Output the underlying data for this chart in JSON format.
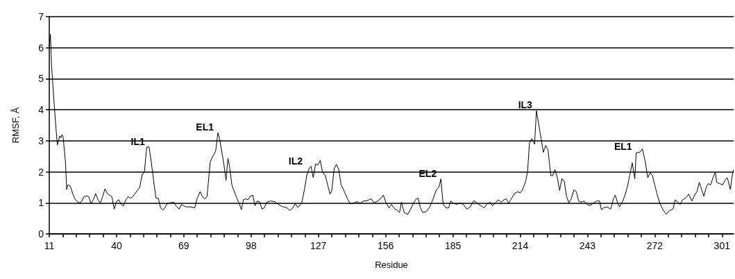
{
  "chart_data": {
    "type": "line",
    "xlabel": "Residue",
    "ylabel": "RMSF, Å",
    "x": [
      11,
      11.5,
      12,
      13,
      14,
      14.5,
      15.5,
      16,
      16.5,
      17,
      18,
      18.5,
      19,
      20,
      21,
      22,
      23,
      24,
      25,
      26,
      27,
      28,
      29,
      30,
      31,
      32,
      33,
      34,
      35,
      36,
      37,
      38,
      39,
      40,
      41,
      42,
      43,
      44,
      45,
      46,
      47,
      48,
      49,
      50,
      51,
      52,
      53,
      54,
      55,
      56,
      57,
      58,
      59,
      60,
      61,
      62,
      63,
      64.7,
      65.7,
      67,
      68,
      69,
      70,
      72,
      73.7,
      74.7,
      76,
      77,
      78,
      79,
      80.4,
      81.4,
      82.7,
      83.7,
      84.4,
      85.4,
      86.4,
      87.2,
      88,
      88.7,
      89.7,
      91,
      92,
      93,
      93.8,
      94.7,
      95.7,
      96.7,
      97.7,
      98.7,
      99.7,
      100.7,
      101.7,
      102.7,
      103.7,
      104.7,
      106.2,
      108.2,
      110.5,
      112,
      113.5,
      114.8,
      116,
      117,
      118.2,
      119.8,
      121,
      122,
      123,
      123.8,
      124.8,
      125.8,
      126.8,
      127.8,
      128.8,
      130,
      131,
      132,
      132.8,
      133.8,
      134.8,
      135.8,
      136.8,
      138,
      139.5,
      140.8,
      142,
      143.5,
      145,
      146.5,
      148,
      149.8,
      151,
      152.5,
      153.8,
      155,
      156.2,
      157.5,
      158.5,
      160,
      161,
      162,
      162.8,
      164,
      165.5,
      166.5,
      168,
      169.2,
      170,
      171,
      172,
      173.5,
      175,
      176.5,
      177.8,
      179,
      179.8,
      180.8,
      182,
      183.2,
      184,
      185.2,
      186.5,
      188,
      189.5,
      191,
      192.5,
      194,
      195.5,
      197,
      198.5,
      199.8,
      201,
      202,
      203.2,
      204.5,
      205.8,
      207,
      208,
      209,
      210.5,
      211.5,
      213,
      214,
      215,
      215.8,
      216.5,
      217.2,
      218,
      219,
      220.2,
      221,
      222,
      223,
      224,
      225,
      226,
      227.2,
      228,
      229,
      230,
      231,
      232,
      233,
      234,
      235,
      236,
      237.2,
      238.2,
      239.2,
      240.2,
      241.5,
      242.8,
      244,
      245.5,
      247,
      248.2,
      249,
      250.2,
      251.5,
      253,
      254.2,
      255,
      256,
      256.8,
      258,
      259.2,
      260.3,
      261.2,
      262.3,
      263.4,
      264,
      265.7,
      266.7,
      267.9,
      269,
      270,
      271,
      272,
      273,
      274.2,
      275.4,
      276.9,
      278.4,
      279.9,
      280.8,
      282,
      283,
      284,
      285.3,
      286.6,
      288,
      289.2,
      290.2,
      291.2,
      292.2,
      293.2,
      294.2,
      295.1,
      296.1,
      297.1,
      298.1,
      298.7,
      300,
      301.3,
      302.3,
      303.3,
      304.6,
      305.4,
      306
    ],
    "series": [
      {
        "color": "#000000",
        "values": [
          6.0,
          6.43,
          5.4,
          4.3,
          3.3,
          2.87,
          3.15,
          3.1,
          3.2,
          3.1,
          2.3,
          1.43,
          1.58,
          1.55,
          1.32,
          1.13,
          1.05,
          1.0,
          1.05,
          1.2,
          1.22,
          1.2,
          0.98,
          1.1,
          1.3,
          1.1,
          1.0,
          1.2,
          1.45,
          1.3,
          1.25,
          1.2,
          0.8,
          1.05,
          1.1,
          0.95,
          0.9,
          1.1,
          1.2,
          1.15,
          1.2,
          1.3,
          1.4,
          1.5,
          1.9,
          2.0,
          2.8,
          2.8,
          2.3,
          1.7,
          1.15,
          1.15,
          0.84,
          0.76,
          0.87,
          0.99,
          1.0,
          1.02,
          0.9,
          0.8,
          0.95,
          0.9,
          0.87,
          0.87,
          0.84,
          1.13,
          1.36,
          1.2,
          1.13,
          1.2,
          2.33,
          2.48,
          2.66,
          3.26,
          3.07,
          2.63,
          2.18,
          1.73,
          2.44,
          2.18,
          1.58,
          1.32,
          1.13,
          0.95,
          0.78,
          1.1,
          1.13,
          1.1,
          1.22,
          1.25,
          0.91,
          1.06,
          1.03,
          0.8,
          0.84,
          1.02,
          1.06,
          1.04,
          0.91,
          0.87,
          0.84,
          0.75,
          0.84,
          0.97,
          0.85,
          0.99,
          1.43,
          1.88,
          2.1,
          2.18,
          1.81,
          2.25,
          2.22,
          2.37,
          1.99,
          1.88,
          1.58,
          1.28,
          1.4,
          2.1,
          2.24,
          2.07,
          1.58,
          1.4,
          1.13,
          0.97,
          0.99,
          1.04,
          0.99,
          1.06,
          1.07,
          1.13,
          1.0,
          1.06,
          1.13,
          1.25,
          0.99,
          0.84,
          0.95,
          0.8,
          0.76,
          0.69,
          1.02,
          0.69,
          0.63,
          0.76,
          0.99,
          1.13,
          1.15,
          0.84,
          0.69,
          0.72,
          0.87,
          1.13,
          1.42,
          1.51,
          1.77,
          0.95,
          0.84,
          0.84,
          1.06,
          0.99,
          0.95,
          0.99,
          0.95,
          0.8,
          0.87,
          1.07,
          0.99,
          0.91,
          0.84,
          0.97,
          1.02,
          0.91,
          0.99,
          1.1,
          1.02,
          1.1,
          1.13,
          0.99,
          1.17,
          1.3,
          1.36,
          1.32,
          1.43,
          1.58,
          1.73,
          2.03,
          2.93,
          3.07,
          2.89,
          3.97,
          3.52,
          3.07,
          2.63,
          2.85,
          2.7,
          1.88,
          1.88,
          2.07,
          1.81,
          1.4,
          1.78,
          1.69,
          1.2,
          1.0,
          1.13,
          1.42,
          1.36,
          1.06,
          1.02,
          1.06,
          0.95,
          0.91,
          0.99,
          1.06,
          1.06,
          0.78,
          0.85,
          0.87,
          0.8,
          1.13,
          1.25,
          0.99,
          0.87,
          1.02,
          1.25,
          1.55,
          1.88,
          2.29,
          1.77,
          2.61,
          2.64,
          2.74,
          2.33,
          1.81,
          1.97,
          1.88,
          1.58,
          1.28,
          0.99,
          0.8,
          0.63,
          0.75,
          0.8,
          1.1,
          1.02,
          0.95,
          1.1,
          1.15,
          1.28,
          1.06,
          1.25,
          1.36,
          1.66,
          1.43,
          1.21,
          1.51,
          1.62,
          1.58,
          1.81,
          1.99,
          1.66,
          1.62,
          1.58,
          1.73,
          1.81,
          1.43,
          1.88,
          2.07
        ]
      }
    ],
    "xlim": [
      11,
      306
    ],
    "xticks": [
      11,
      {
        "value": 16.8,
        "label": null
      },
      {
        "value": 22.6,
        "label": null
      },
      {
        "value": 28.4,
        "label": null
      },
      {
        "value": 34.2,
        "label": null
      },
      40,
      {
        "value": 45.8,
        "label": null
      },
      {
        "value": 51.6,
        "label": null
      },
      {
        "value": 57.4,
        "label": null
      },
      {
        "value": 63.2,
        "label": null
      },
      69,
      {
        "value": 74.8,
        "label": null
      },
      {
        "value": 80.6,
        "label": null
      },
      {
        "value": 86.4,
        "label": null
      },
      {
        "value": 92.2,
        "label": null
      },
      98,
      {
        "value": 103.8,
        "label": null
      },
      {
        "value": 109.6,
        "label": null
      },
      {
        "value": 115.4,
        "label": null
      },
      {
        "value": 121.2,
        "label": null
      },
      127,
      {
        "value": 132.8,
        "label": null
      },
      {
        "value": 138.6,
        "label": null
      },
      {
        "value": 144.4,
        "label": null
      },
      {
        "value": 150.2,
        "label": null
      },
      156,
      {
        "value": 161.8,
        "label": null
      },
      {
        "value": 167.6,
        "label": null
      },
      {
        "value": 173.4,
        "label": null
      },
      {
        "value": 179.2,
        "label": null
      },
      185,
      {
        "value": 190.8,
        "label": null
      },
      {
        "value": 196.6,
        "label": null
      },
      {
        "value": 202.4,
        "label": null
      },
      {
        "value": 208.2,
        "label": null
      },
      214,
      {
        "value": 219.8,
        "label": null
      },
      {
        "value": 225.6,
        "label": null
      },
      {
        "value": 231.4,
        "label": null
      },
      {
        "value": 237.2,
        "label": null
      },
      243,
      {
        "value": 248.8,
        "label": null
      },
      {
        "value": 254.6,
        "label": null
      },
      {
        "value": 260.4,
        "label": null
      },
      {
        "value": 266.2,
        "label": null
      },
      272,
      {
        "value": 277.8,
        "label": null
      },
      {
        "value": 283.6,
        "label": null
      },
      {
        "value": 289.4,
        "label": null
      },
      {
        "value": 295.2,
        "label": null
      },
      301
    ],
    "ylim": [
      0,
      7
    ],
    "yticks": [
      0,
      1,
      2,
      3,
      4,
      5,
      6,
      7
    ],
    "grid": "y",
    "marker": "none",
    "line_style": "solid",
    "annotations": [
      {
        "text": "IL1",
        "x": 54,
        "y": 2.8
      },
      {
        "text": "EL1",
        "x": 83.7,
        "y": 3.26
      },
      {
        "text": "IL2",
        "x": 122,
        "y": 2.18
      },
      {
        "text": "EL2",
        "x": 179.8,
        "y": 1.77
      },
      {
        "text": "IL3",
        "x": 221,
        "y": 3.97
      },
      {
        "text": "EL1",
        "x": 264,
        "y": 2.64
      }
    ]
  }
}
